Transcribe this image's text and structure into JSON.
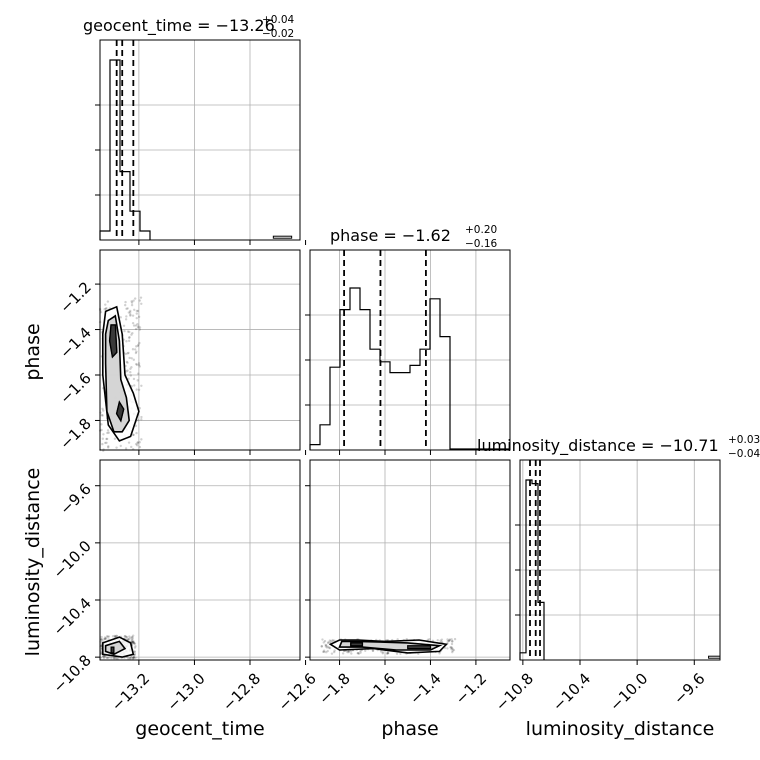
{
  "chart_data": {
    "type": "corner",
    "parameters": [
      "geocent_time",
      "phase",
      "luminosity_distance"
    ],
    "xlabels": [
      "geocent_time",
      "phase",
      "luminosity_distance"
    ],
    "ylabels": [
      "phase",
      "luminosity_distance"
    ],
    "grid": true,
    "titles": [
      {
        "label": "geocent_time = −13.26",
        "plus": "+0.04",
        "minus": "−0.02"
      },
      {
        "label": "phase = −1.62",
        "plus": "+0.20",
        "minus": "−0.16"
      },
      {
        "label": "luminosity_distance = −10.71",
        "plus": "+0.03",
        "minus": "−0.04"
      }
    ],
    "ranges": {
      "geocent_time": [
        -13.34,
        -12.62
      ],
      "phase": [
        -1.93,
        -1.05
      ],
      "luminosity_distance": [
        -10.82,
        -9.42
      ]
    },
    "ticks": {
      "geocent_time": [
        -13.2,
        -13.0,
        -12.8,
        -12.6
      ],
      "phase": [
        -1.8,
        -1.6,
        -1.4,
        -1.2
      ],
      "luminosity_distance": [
        -10.8,
        -10.4,
        -10.0,
        -9.6
      ]
    },
    "tick_labels": {
      "geocent_time": [
        "−13.2",
        "−13.0",
        "−12.8",
        "−12.6"
      ],
      "phase": [
        "−1.8",
        "−1.6",
        "−1.4",
        "−1.2"
      ],
      "luminosity_distance": [
        "−10.8",
        "−10.4",
        "−10.0",
        "−9.6"
      ]
    },
    "quantiles": {
      "geocent_time": [
        -13.28,
        -13.26,
        -13.22
      ],
      "phase": [
        -1.78,
        -1.62,
        -1.42
      ],
      "luminosity_distance": [
        -10.75,
        -10.71,
        -10.68
      ]
    },
    "histograms": {
      "geocent_time": {
        "edges": [
          -13.34,
          -13.304,
          -13.268,
          -13.232,
          -13.196,
          -13.16
        ],
        "counts": [
          0.05,
          1.0,
          0.38,
          0.16,
          0.05
        ],
        "outliers": [
          {
            "x": [
              -12.716,
              -12.65
            ],
            "count": 0.01
          }
        ]
      },
      "phase": {
        "edges": [
          -1.93,
          -1.886,
          -1.842,
          -1.798,
          -1.754,
          -1.71,
          -1.666,
          -1.622,
          -1.578,
          -1.534,
          -1.49,
          -1.446,
          -1.402,
          -1.358,
          -1.314
        ],
        "counts": [
          0.03,
          0.14,
          0.46,
          0.78,
          0.9,
          0.78,
          0.56,
          0.49,
          0.43,
          0.43,
          0.47,
          0.56,
          0.84,
          0.63
        ],
        "tail": [
          -1.314,
          -1.05
        ]
      },
      "luminosity_distance": {
        "edges": [
          -10.82,
          -10.778,
          -10.736,
          -10.694,
          -10.652
        ],
        "counts": [
          0.04,
          1.0,
          0.98,
          0.32
        ],
        "outliers": [
          {
            "x": [
              -9.5,
              -9.42
            ],
            "count": 0.01
          }
        ]
      }
    },
    "panels": {
      "phase_vs_geocent_time": {
        "contours": [
          [
            [
              -13.32,
              -1.32
            ],
            [
              -13.28,
              -1.3
            ],
            [
              -13.26,
              -1.42
            ],
            [
              -13.25,
              -1.6
            ],
            [
              -13.22,
              -1.68
            ],
            [
              -13.2,
              -1.76
            ],
            [
              -13.23,
              -1.87
            ],
            [
              -13.27,
              -1.89
            ],
            [
              -13.31,
              -1.82
            ],
            [
              -13.33,
              -1.6
            ],
            [
              -13.33,
              -1.42
            ]
          ],
          [
            [
              -13.31,
              -1.36
            ],
            [
              -13.285,
              -1.34
            ],
            [
              -13.27,
              -1.45
            ],
            [
              -13.265,
              -1.62
            ],
            [
              -13.245,
              -1.7
            ],
            [
              -13.235,
              -1.8
            ],
            [
              -13.26,
              -1.85
            ],
            [
              -13.29,
              -1.85
            ],
            [
              -13.315,
              -1.76
            ],
            [
              -13.32,
              -1.55
            ],
            [
              -13.32,
              -1.42
            ]
          ],
          [
            [
              -13.3,
              -1.38
            ],
            [
              -13.285,
              -1.38
            ],
            [
              -13.28,
              -1.5
            ],
            [
              -13.295,
              -1.52
            ],
            [
              -13.305,
              -1.45
            ]
          ],
          [
            [
              -13.27,
              -1.72
            ],
            [
              -13.255,
              -1.75
            ],
            [
              -13.265,
              -1.8
            ],
            [
              -13.28,
              -1.77
            ]
          ]
        ],
        "filled_level": [
          [
            [
              -13.3,
              -1.38
            ],
            [
              -13.285,
              -1.38
            ],
            [
              -13.28,
              -1.5
            ],
            [
              -13.295,
              -1.52
            ],
            [
              -13.305,
              -1.45
            ]
          ],
          [
            [
              -13.27,
              -1.72
            ],
            [
              -13.255,
              -1.75
            ],
            [
              -13.265,
              -1.8
            ],
            [
              -13.28,
              -1.77
            ]
          ]
        ],
        "density_peak": [
          -13.29,
          -1.42
        ]
      },
      "luminosity_distance_vs_geocent_time": {
        "contours": [
          [
            [
              -13.33,
              -10.7
            ],
            [
              -13.27,
              -10.66
            ],
            [
              -13.23,
              -10.7
            ],
            [
              -13.22,
              -10.78
            ],
            [
              -13.26,
              -10.8
            ],
            [
              -13.33,
              -10.78
            ]
          ],
          [
            [
              -13.32,
              -10.72
            ],
            [
              -13.27,
              -10.69
            ],
            [
              -13.25,
              -10.74
            ],
            [
              -13.29,
              -10.78
            ],
            [
              -13.32,
              -10.76
            ]
          ]
        ],
        "filled_level": [
          [
            [
              -13.3,
              -10.73
            ],
            [
              -13.29,
              -10.73
            ],
            [
              -13.29,
              -10.77
            ],
            [
              -13.3,
              -10.77
            ]
          ]
        ],
        "density_peak": [
          -13.295,
          -10.75
        ]
      },
      "luminosity_distance_vs_phase": {
        "contours": [
          [
            [
              -1.8,
              -10.68
            ],
            [
              -1.72,
              -10.68
            ],
            [
              -1.6,
              -10.69
            ],
            [
              -1.45,
              -10.68
            ],
            [
              -1.33,
              -10.71
            ],
            [
              -1.36,
              -10.76
            ],
            [
              -1.5,
              -10.77
            ],
            [
              -1.65,
              -10.74
            ],
            [
              -1.8,
              -10.75
            ],
            [
              -1.84,
              -10.71
            ]
          ],
          [
            [
              -1.79,
              -10.69
            ],
            [
              -1.72,
              -10.69
            ],
            [
              -1.5,
              -10.7
            ],
            [
              -1.36,
              -10.72
            ],
            [
              -1.4,
              -10.75
            ],
            [
              -1.55,
              -10.75
            ],
            [
              -1.7,
              -10.73
            ],
            [
              -1.8,
              -10.73
            ]
          ],
          [
            [
              -1.75,
              -10.7
            ],
            [
              -1.7,
              -10.7
            ],
            [
              -1.7,
              -10.72
            ],
            [
              -1.75,
              -10.72
            ]
          ]
        ],
        "filled_level": [
          [
            [
              -1.75,
              -10.7
            ],
            [
              -1.7,
              -10.7
            ],
            [
              -1.7,
              -10.72
            ],
            [
              -1.75,
              -10.72
            ]
          ],
          [
            [
              -1.5,
              -10.72
            ],
            [
              -1.4,
              -10.72
            ],
            [
              -1.4,
              -10.74
            ],
            [
              -1.5,
              -10.74
            ]
          ]
        ]
      }
    }
  }
}
